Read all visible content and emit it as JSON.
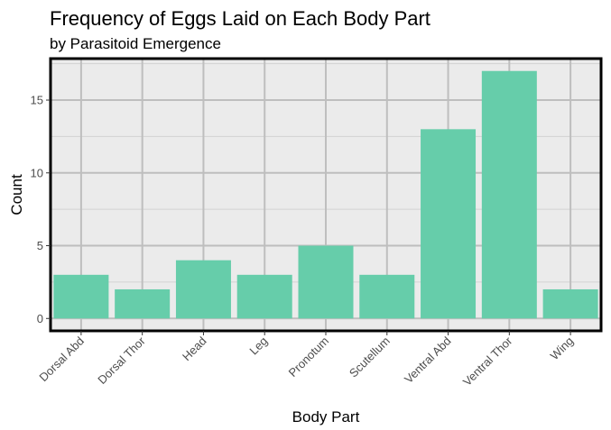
{
  "chart_data": {
    "type": "bar",
    "title": "Frequency of Eggs Laid on Each Body Part",
    "subtitle": "by Parasitoid Emergence",
    "xlabel": "Body Part",
    "ylabel": "Count",
    "categories": [
      "Dorsal Abd",
      "Dorsal Thor",
      "Head",
      "Leg",
      "Pronotum",
      "Scutellum",
      "Ventral Abd",
      "Ventral Thor",
      "Wing"
    ],
    "values": [
      3,
      2,
      4,
      3,
      5,
      3,
      13,
      17,
      2
    ],
    "ylim": [
      -0.85,
      17.85
    ],
    "yticks": [
      0,
      5,
      10,
      15
    ],
    "ytick_labels": [
      "0",
      "5",
      "10",
      "15"
    ],
    "grid": true,
    "legend": "none",
    "x_tick_rotation_deg": 45,
    "colors": {
      "bar": "#66CDAA",
      "panel_background": "#EBEBEB",
      "grid_major": "#BEBEBE",
      "grid_minor": "#D2D2D2",
      "panel_border": "#000000",
      "tick_text": "#4D4D4D"
    }
  }
}
